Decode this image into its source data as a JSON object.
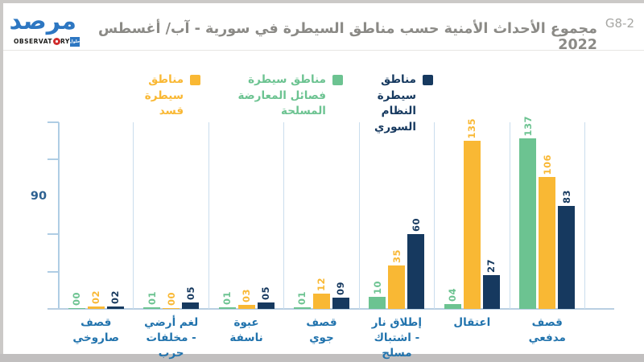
{
  "page": {
    "title": "مجموع الأحداث الأمنية حسب مناطق السيطرة في سورية - آب/ أغسطس 2022",
    "code_label": "G8-2"
  },
  "logo": {
    "wordmark_arabic": "مرصد",
    "observatory_left": "OBSERVAT",
    "observatory_right": "RY",
    "badge_text": "حلول"
  },
  "legend": {
    "entries": [
      {
        "key": "regime",
        "label": "مناطق سيطرة\nالنظام السوري",
        "color": "#16395f"
      },
      {
        "key": "opposition",
        "label": "مناطق سيطرة\nفصائل المعارضة المسلحة",
        "color": "#6cc391"
      },
      {
        "key": "sdf",
        "label": "مناطق سيطرة\nقسد",
        "color": "#f9b834"
      }
    ]
  },
  "chart_data": {
    "type": "bar",
    "title": "مجموع الأحداث الأمنية حسب مناطق السيطرة في سورية - آب/ أغسطس 2022",
    "xlabel": "",
    "ylabel": "",
    "categories": [
      "قصف\nصاروخي",
      "لغم أرضي\n- مخلفات\nحرب",
      "عبوة\nناسفة",
      "قصف\nجوي",
      "إطلاق نار\n- اشتباك\nمسلح",
      "اعتقال",
      "قصف\nمدفعي"
    ],
    "series": [
      {
        "key": "opposition",
        "name": "مناطق سيطرة فصائل المعارضة المسلحة",
        "color": "#6cc391",
        "values": [
          0,
          1,
          1,
          1,
          10,
          4,
          137
        ],
        "labels": [
          "00",
          "01",
          "01",
          "01",
          "10",
          "04",
          "137"
        ]
      },
      {
        "key": "sdf",
        "name": "مناطق سيطرة قسد",
        "color": "#f9b834",
        "values": [
          2,
          0,
          3,
          12,
          35,
          135,
          106
        ],
        "labels": [
          "02",
          "00",
          "03",
          "12",
          "35",
          "135",
          "106"
        ]
      },
      {
        "key": "regime",
        "name": "مناطق سيطرة النظام السوري",
        "color": "#16395f",
        "values": [
          2,
          5,
          5,
          9,
          60,
          27,
          83
        ],
        "labels": [
          "02",
          "05",
          "05",
          "09",
          "60",
          "27",
          "83"
        ]
      }
    ],
    "ylim": [
      0,
      150
    ],
    "yticks": [
      30,
      60,
      90,
      120,
      150
    ],
    "ytick_labeled": {
      "value": 90,
      "label": "90"
    },
    "legend_position": "top",
    "grid": false,
    "bar_label_rotation": 90
  }
}
